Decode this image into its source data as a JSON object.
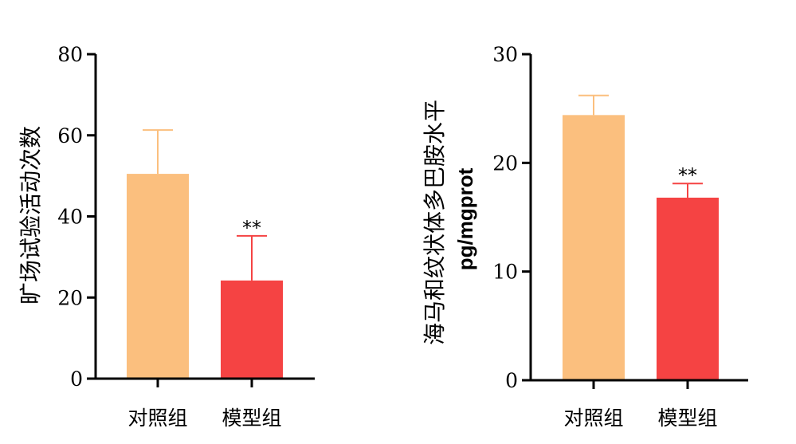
{
  "colors": {
    "control": "#FBBF7E",
    "model": "#F54343",
    "axis": "#000000"
  },
  "chart_data": [
    {
      "type": "bar",
      "categories": [
        "对照组",
        "模型组"
      ],
      "values": [
        50.5,
        24.2
      ],
      "errors": [
        10.8,
        11.0
      ],
      "significance": [
        "",
        "**"
      ],
      "ylabel": "旷场试验活动次数",
      "ylabel_unit": "",
      "ylim": [
        0,
        80
      ],
      "yticks": [
        0,
        20,
        40,
        60,
        80
      ],
      "ytick_labels": [
        "0",
        "20",
        "40",
        "60",
        "80"
      ],
      "grid": false,
      "legend": "none"
    },
    {
      "type": "bar",
      "categories": [
        "对照组",
        "模型组"
      ],
      "values": [
        24.4,
        16.8
      ],
      "errors": [
        1.8,
        1.3
      ],
      "significance": [
        "",
        "**"
      ],
      "ylabel": "海马和纹状体多巴胺水平",
      "ylabel_unit": "pg/mgprot",
      "ylim": [
        0,
        30
      ],
      "yticks": [
        0,
        10,
        20,
        30
      ],
      "ytick_labels": [
        "0",
        "10",
        "20",
        "30"
      ],
      "grid": false,
      "legend": "none"
    }
  ]
}
